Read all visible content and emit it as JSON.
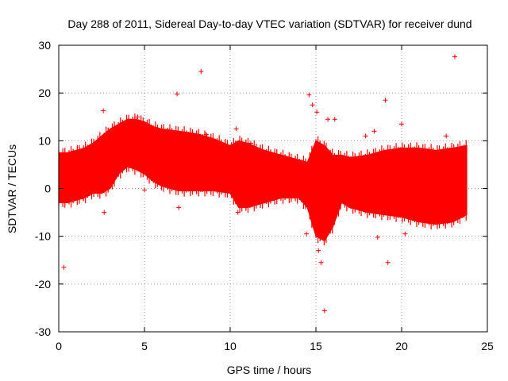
{
  "chart_data": {
    "type": "scatter",
    "title": "Day 288 of 2011, Sidereal Day-to-day VTEC variation (SDTVAR) for receiver dund",
    "xlabel": "GPS time / hours",
    "ylabel": "SDTVAR / TECUs",
    "xlim": [
      0,
      25
    ],
    "ylim": [
      -30,
      30
    ],
    "x_ticks": [
      0,
      5,
      10,
      15,
      20,
      25
    ],
    "y_ticks": [
      -30,
      -20,
      -10,
      0,
      10,
      20,
      30
    ],
    "grid": true,
    "marker": "+",
    "color": "#ff0000",
    "series": [
      {
        "name": "SDTVAR",
        "band_x": [
          0.0,
          0.5,
          1.0,
          1.5,
          2.0,
          2.5,
          3.0,
          3.5,
          4.0,
          4.5,
          5.0,
          5.5,
          6.0,
          7.0,
          8.0,
          9.0,
          10.0,
          10.5,
          11.0,
          12.0,
          13.0,
          14.0,
          14.5,
          15.0,
          15.5,
          16.0,
          16.5,
          17.0,
          18.0,
          19.0,
          20.0,
          21.0,
          22.0,
          23.0,
          23.8
        ],
        "band_upper": [
          7.5,
          7.5,
          8.0,
          8.5,
          9.5,
          11.0,
          12.5,
          13.5,
          14.5,
          14.5,
          14.0,
          13.0,
          12.5,
          12.0,
          11.5,
          10.5,
          9.0,
          10.0,
          9.5,
          8.0,
          7.0,
          6.0,
          5.5,
          10.0,
          9.0,
          7.0,
          7.0,
          6.5,
          7.0,
          8.0,
          8.5,
          8.5,
          8.0,
          8.5,
          9.0
        ],
        "band_lower": [
          -3.0,
          -3.0,
          -2.5,
          -2.0,
          -1.0,
          -1.0,
          0.0,
          3.0,
          4.5,
          4.0,
          3.0,
          1.5,
          0.5,
          -0.5,
          -0.5,
          -0.5,
          -1.0,
          -4.0,
          -4.0,
          -3.0,
          -2.0,
          -2.0,
          -4.0,
          -10.0,
          -11.0,
          -8.0,
          -3.0,
          -4.0,
          -5.0,
          -5.5,
          -6.0,
          -7.0,
          -7.5,
          -7.0,
          -5.5
        ],
        "outliers": [
          [
            0.3,
            -16.5
          ],
          [
            2.6,
            16.3
          ],
          [
            2.65,
            -5.0
          ],
          [
            4.6,
            15.0
          ],
          [
            5.0,
            -0.3
          ],
          [
            6.9,
            19.8
          ],
          [
            7.0,
            -4.0
          ],
          [
            8.3,
            24.5
          ],
          [
            8.6,
            11.3
          ],
          [
            10.35,
            12.5
          ],
          [
            10.45,
            -5.0
          ],
          [
            11.2,
            9.5
          ],
          [
            14.45,
            -9.5
          ],
          [
            14.6,
            19.6
          ],
          [
            14.8,
            17.5
          ],
          [
            15.05,
            16.0
          ],
          [
            15.15,
            -13.0
          ],
          [
            15.3,
            -15.5
          ],
          [
            15.5,
            -25.6
          ],
          [
            15.7,
            14.5
          ],
          [
            16.1,
            14.5
          ],
          [
            17.9,
            11.0
          ],
          [
            18.4,
            12.0
          ],
          [
            18.6,
            -10.2
          ],
          [
            19.05,
            18.5
          ],
          [
            19.2,
            -15.5
          ],
          [
            20.0,
            13.5
          ],
          [
            20.2,
            -9.5
          ],
          [
            23.1,
            27.6
          ],
          [
            22.6,
            11.0
          ]
        ]
      }
    ]
  }
}
